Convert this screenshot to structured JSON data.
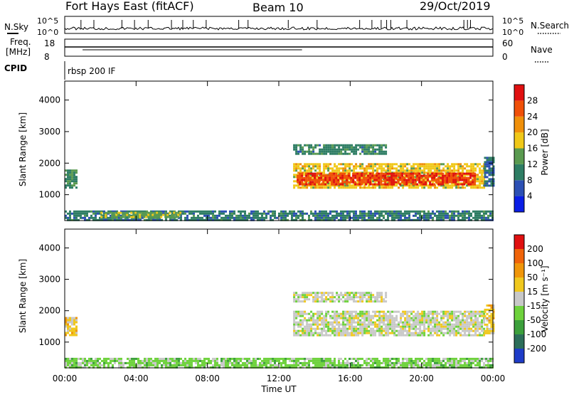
{
  "header": {
    "station": "Fort Hays East (fitACF)",
    "beam": "Beam 10",
    "date": "29/Oct/2019"
  },
  "status_panels": {
    "nsky_label": "N.Sky",
    "nsky_ticks": [
      "10^5",
      "10^0"
    ],
    "nsearch_label": "N.Search",
    "nsearch_ticks": [
      "10^5",
      "10^0"
    ],
    "freq_label_line1": "Freq.",
    "freq_label_line2": "[MHz]",
    "freq_ticks": [
      "18",
      "8"
    ],
    "nave_label": "Nave",
    "nave_ticks": [
      "60",
      "0"
    ],
    "cpid_label": "CPID",
    "cpid_value": "rbsp 200 IF"
  },
  "axes": {
    "x_ticks": [
      "00:00",
      "04:00",
      "08:00",
      "12:00",
      "16:00",
      "20:00",
      "00:00"
    ],
    "x_label": "Time UT",
    "y_ticks": [
      "1000",
      "2000",
      "3000",
      "4000"
    ],
    "y_label": "Slant Range [km]"
  },
  "colorbars": {
    "power": {
      "label": "Power [dB]",
      "tick_labels": [
        "4",
        "8",
        "12",
        "16",
        "20",
        "24",
        "28"
      ],
      "colors": [
        "#0a1ee6",
        "#2c50b4",
        "#2e7d64",
        "#5a9a50",
        "#f0c818",
        "#f0900a",
        "#f05008",
        "#e01010"
      ]
    },
    "velocity": {
      "label": "Velocity [m s⁻¹]",
      "tick_labels": [
        "200",
        "100",
        "50",
        "15",
        "-15",
        "-50",
        "-100",
        "-200"
      ],
      "colors": [
        "#1e3cc8",
        "#2c6e5a",
        "#3ca03c",
        "#6ed23c",
        "#c8c8c8",
        "#f0c81e",
        "#f0960a",
        "#f0640a",
        "#e01010"
      ]
    }
  },
  "chart_data": [
    {
      "type": "heatmap",
      "title": "Power",
      "xlabel": "Time UT",
      "ylabel": "Slant Range [km]",
      "xlim_hours": [
        0,
        24
      ],
      "ylim_km": [
        180,
        4600
      ],
      "colorbar_label": "Power [dB]",
      "colorbar_range": [
        0,
        30
      ],
      "regions": [
        {
          "t_start": 0.0,
          "t_end": 0.6,
          "range_start": 1200,
          "range_end": 1800,
          "value": 11
        },
        {
          "t_start": 0.0,
          "t_end": 24.0,
          "range_start": 200,
          "range_end": 500,
          "value": 9
        },
        {
          "t_start": 2.0,
          "t_end": 6.5,
          "range_start": 260,
          "range_end": 460,
          "value": 14
        },
        {
          "t_start": 12.8,
          "t_end": 23.5,
          "range_start": 1200,
          "range_end": 2000,
          "value": 17
        },
        {
          "t_start": 13.0,
          "t_end": 23.0,
          "range_start": 1300,
          "range_end": 1700,
          "value": 26
        },
        {
          "t_start": 12.8,
          "t_end": 18.0,
          "range_start": 2300,
          "range_end": 2600,
          "value": 10
        },
        {
          "t_start": 23.5,
          "t_end": 24.0,
          "range_start": 1300,
          "range_end": 2200,
          "value": 8
        }
      ]
    },
    {
      "type": "heatmap",
      "title": "Velocity",
      "xlabel": "Time UT",
      "ylabel": "Slant Range [km]",
      "xlim_hours": [
        0,
        24
      ],
      "ylim_km": [
        180,
        4600
      ],
      "colorbar_label": "Velocity [m s⁻¹]",
      "colorbar_range": [
        -200,
        200
      ],
      "regions": [
        {
          "t_start": 0.0,
          "t_end": 0.6,
          "range_start": 1200,
          "range_end": 1800,
          "value": 40
        },
        {
          "t_start": 0.0,
          "t_end": 24.0,
          "range_start": 200,
          "range_end": 500,
          "value": -40
        },
        {
          "t_start": 12.8,
          "t_end": 23.5,
          "range_start": 1200,
          "range_end": 2000,
          "value": 0
        },
        {
          "t_start": 12.8,
          "t_end": 18.0,
          "range_start": 2300,
          "range_end": 2600,
          "value": 0
        },
        {
          "t_start": 23.5,
          "t_end": 24.0,
          "range_start": 1300,
          "range_end": 2200,
          "value": 40
        }
      ]
    }
  ]
}
